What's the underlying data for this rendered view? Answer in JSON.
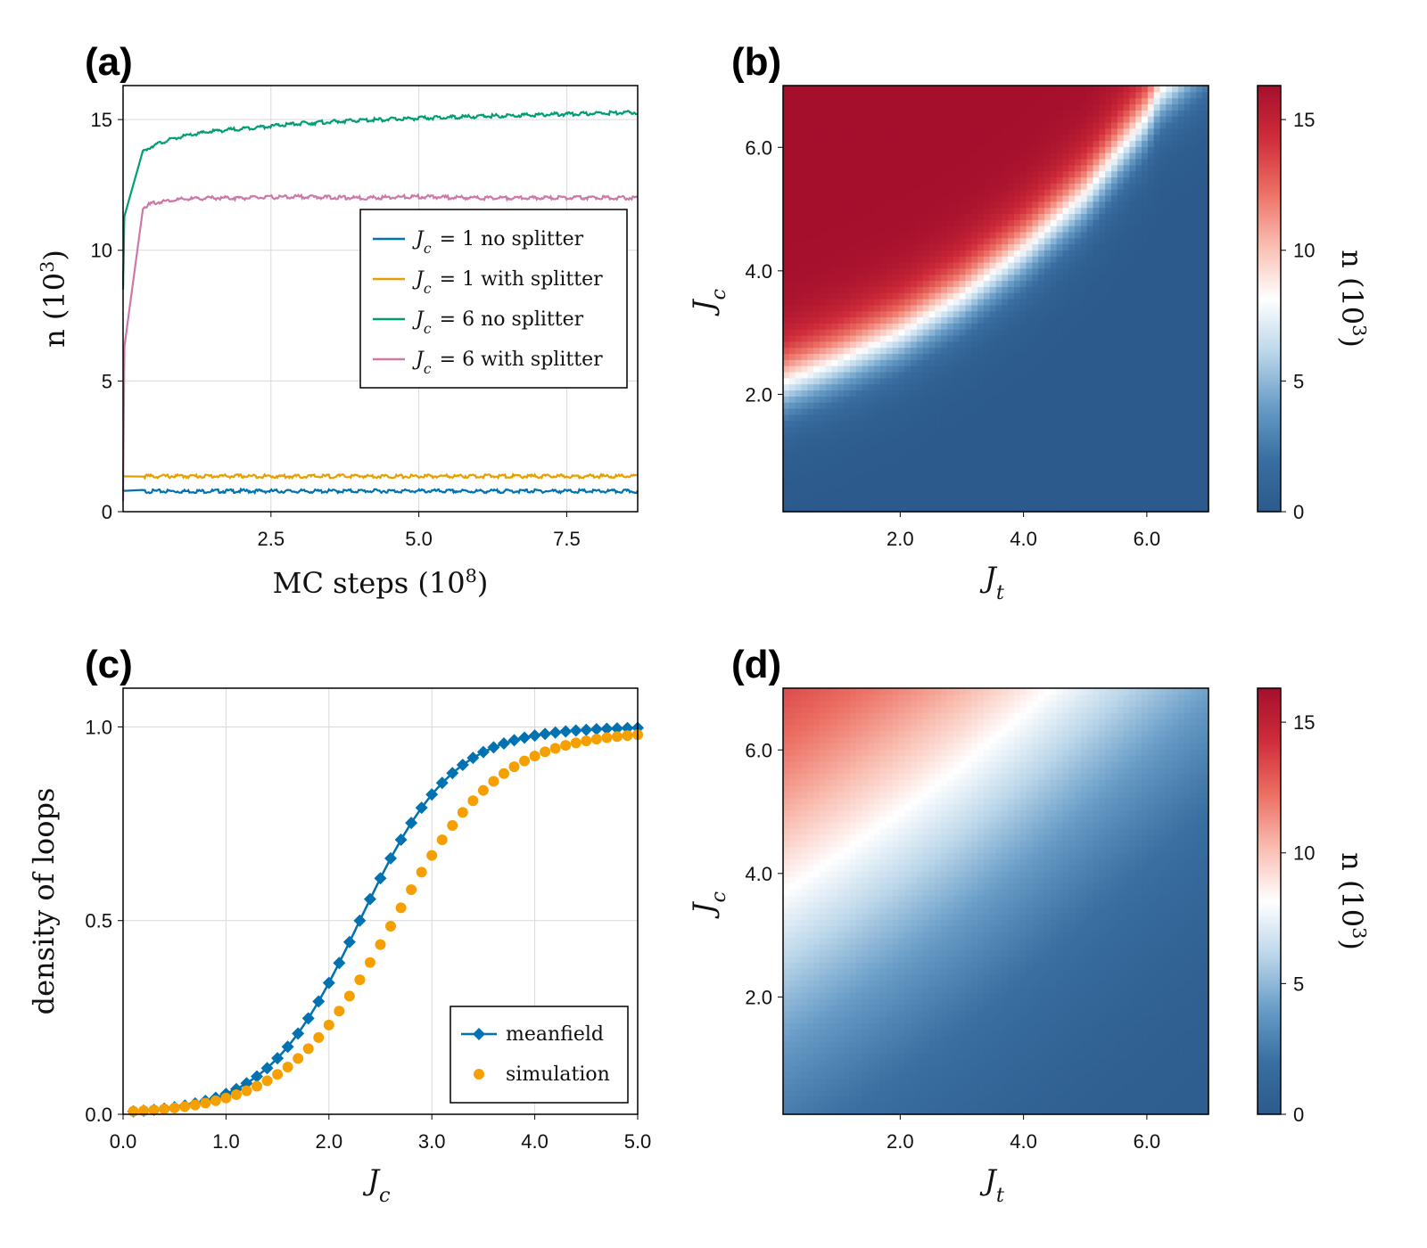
{
  "chart_data": [
    {
      "panel": "(a)",
      "type": "line",
      "xlabel": "MC steps (10^8)",
      "ylabel": "n (10^3)",
      "xlim": [
        0,
        8.7
      ],
      "ylim": [
        0,
        16.3
      ],
      "xticks": [
        "2.5",
        "5.0",
        "7.5"
      ],
      "yticks": [
        "0",
        "5",
        "10",
        "15"
      ],
      "grid": true,
      "legend_position": "center-right",
      "series": [
        {
          "name": "J_c = 1 no splitter",
          "color": "#0072b2",
          "x": [
            0,
            0.02,
            0.1,
            1,
            2,
            3,
            4,
            5,
            6,
            7,
            8,
            8.7
          ],
          "y": [
            0.8,
            0.8,
            0.78,
            0.78,
            0.79,
            0.78,
            0.79,
            0.79,
            0.78,
            0.79,
            0.78,
            0.78
          ]
        },
        {
          "name": "J_c = 1 with splitter",
          "color": "#e69f00",
          "x": [
            0,
            0.02,
            0.1,
            1,
            2,
            3,
            4,
            5,
            6,
            7,
            8,
            8.7
          ],
          "y": [
            1.35,
            1.35,
            1.35,
            1.36,
            1.36,
            1.35,
            1.36,
            1.35,
            1.36,
            1.35,
            1.36,
            1.35
          ]
        },
        {
          "name": "J_c = 6 no splitter",
          "color": "#009e73",
          "x": [
            0,
            0.02,
            0.05,
            0.1,
            0.2,
            0.35,
            0.5,
            0.75,
            1,
            1.5,
            2,
            2.5,
            3,
            4,
            5,
            6,
            7,
            8,
            8.7
          ],
          "y": [
            8.5,
            11.2,
            12.4,
            13.1,
            13.5,
            13.8,
            14.0,
            14.2,
            14.35,
            14.55,
            14.65,
            14.75,
            14.85,
            14.97,
            15.05,
            15.12,
            15.18,
            15.24,
            15.27
          ]
        },
        {
          "name": "J_c = 6 with splitter",
          "color": "#cc79a7",
          "x": [
            0,
            0.01,
            0.03,
            0.06,
            0.1,
            0.2,
            0.3,
            0.5,
            0.75,
            1,
            1.5,
            2,
            3,
            4,
            5,
            6,
            7,
            8,
            8.7
          ],
          "y": [
            0.4,
            3.5,
            8.0,
            10.3,
            11.0,
            11.4,
            11.6,
            11.8,
            11.9,
            11.95,
            12.0,
            12.0,
            12.05,
            12.0,
            12.05,
            12.0,
            12.0,
            12.02,
            12.0
          ]
        }
      ]
    },
    {
      "panel": "(b)",
      "type": "heatmap",
      "xlabel": "J_t",
      "ylabel": "J_c",
      "xlim": [
        0.1,
        7.0
      ],
      "ylim": [
        0.1,
        7.0
      ],
      "xticks": [
        "2.0",
        "4.0",
        "6.0"
      ],
      "yticks": [
        "2.0",
        "4.0",
        "6.0"
      ],
      "colorbar_label": "n (10^3)",
      "colorbar_ticks": [
        "0",
        "5",
        "10",
        "15"
      ],
      "zlim": [
        0,
        16.3
      ],
      "colormap": [
        "#2c5a8c",
        "#3a6fa1",
        "#6a9ec8",
        "#bcd7ea",
        "#ffffff",
        "#f9bdb0",
        "#ec6f63",
        "#cf2d3a",
        "#a50f2c"
      ],
      "boundary_Jc": {
        "Jt": [
          0.1,
          1,
          2,
          3,
          4,
          5,
          6,
          6.2,
          7.0
        ],
        "Jc": [
          2.2,
          2.55,
          3.0,
          3.6,
          4.35,
          5.25,
          6.5,
          6.9,
          7.6
        ]
      },
      "transition_width": 0.35
    },
    {
      "panel": "(c)",
      "type": "scatter",
      "xlabel": "J_c",
      "ylabel": "density of loops",
      "xlim": [
        0,
        5.0
      ],
      "ylim": [
        0,
        1.1
      ],
      "xticks": [
        "0.0",
        "1.0",
        "2.0",
        "3.0",
        "4.0",
        "5.0"
      ],
      "yticks": [
        "0.0",
        "0.5",
        "1.0"
      ],
      "grid": true,
      "legend_position": "bottom-right",
      "series": [
        {
          "name": "meanfield",
          "color": "#0072b2",
          "marker": "diamond",
          "line": true,
          "center": 2.3,
          "scale": 0.45
        },
        {
          "name": "simulation",
          "color": "#f5a000",
          "marker": "circle",
          "line": false,
          "center": 2.62,
          "scale": 0.52,
          "amplitude": 0.99
        }
      ],
      "x_start": 0.1,
      "x_step": 0.1,
      "x_end": 5.0
    },
    {
      "panel": "(d)",
      "type": "heatmap",
      "xlabel": "J_t",
      "ylabel": "J_c",
      "xlim": [
        0.1,
        7.0
      ],
      "ylim": [
        0.1,
        7.0
      ],
      "xticks": [
        "2.0",
        "4.0",
        "6.0"
      ],
      "yticks": [
        "2.0",
        "4.0",
        "6.0"
      ],
      "colorbar_label": "n (10^3)",
      "colorbar_ticks": [
        "0",
        "5",
        "10",
        "15"
      ],
      "zlim": [
        0,
        16.3
      ],
      "colormap": [
        "#2c5a8c",
        "#3a6fa1",
        "#6a9ec8",
        "#bcd7ea",
        "#ffffff",
        "#f9bdb0",
        "#ec6f63",
        "#cf2d3a",
        "#a50f2c"
      ],
      "boundary_Jc": {
        "Jt": [
          0.1,
          1,
          2,
          3,
          4,
          5,
          6,
          7.0
        ],
        "Jc": [
          3.7,
          4.3,
          5.0,
          5.75,
          6.6,
          7.5,
          8.4,
          9.3
        ]
      },
      "transition_width": 2.2
    }
  ]
}
